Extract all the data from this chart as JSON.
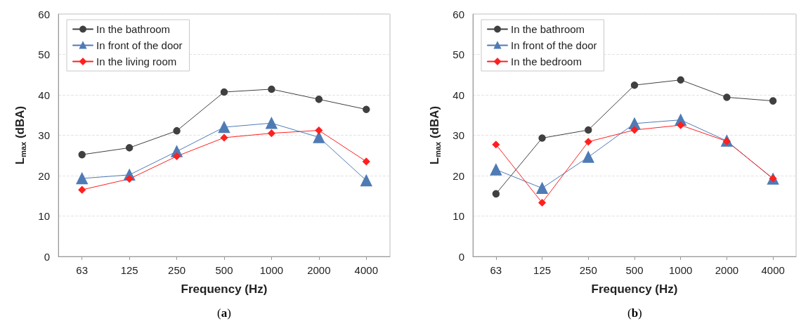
{
  "chart_data": [
    {
      "type": "line",
      "xlabel": "Frequency (Hz)",
      "ylabel": "L$_{max}$ (dBA)",
      "categories": [
        "63",
        "125",
        "250",
        "500",
        "1000",
        "2000",
        "4000"
      ],
      "series": [
        {
          "name": "In the bathroom",
          "color": "#404040",
          "marker": "circle",
          "values": [
            25.2,
            26.9,
            31.1,
            40.7,
            41.4,
            38.9,
            36.4
          ]
        },
        {
          "name": "In front of the door",
          "color": "#4f7bb5",
          "marker": "triangle",
          "values": [
            19.3,
            20.2,
            26.0,
            32.0,
            33.0,
            29.5,
            18.8
          ]
        },
        {
          "name": "In the living room",
          "color": "#ff2020",
          "marker": "diamond",
          "values": [
            16.5,
            19.2,
            24.8,
            29.4,
            30.5,
            31.2,
            23.5
          ]
        }
      ],
      "ylim": [
        0,
        60
      ],
      "yticks": [
        0,
        10,
        20,
        30,
        40,
        50,
        60
      ],
      "grid": "y",
      "legend": "top left",
      "annotations": [
        "(a)"
      ]
    },
    {
      "type": "line",
      "xlabel": "Frequency (Hz)",
      "ylabel": "L$_{max}$ (dBA)",
      "categories": [
        "63",
        "125",
        "250",
        "500",
        "1000",
        "2000",
        "4000"
      ],
      "series": [
        {
          "name": "In the bathroom",
          "color": "#404040",
          "marker": "circle",
          "values": [
            15.5,
            29.3,
            31.3,
            42.4,
            43.7,
            39.4,
            38.5
          ]
        },
        {
          "name": "In front of the door",
          "color": "#4f7bb5",
          "marker": "triangle",
          "values": [
            21.5,
            16.9,
            24.6,
            32.9,
            33.8,
            28.6,
            19.2
          ]
        },
        {
          "name": "In the bedroom",
          "color": "#ff2020",
          "marker": "diamond",
          "values": [
            27.7,
            13.3,
            28.4,
            31.3,
            32.5,
            28.5,
            19.3
          ]
        }
      ],
      "ylim": [
        0,
        60
      ],
      "yticks": [
        0,
        10,
        20,
        30,
        40,
        50,
        60
      ],
      "grid": "y",
      "legend": "top left",
      "annotations": [
        "(b)"
      ]
    }
  ]
}
